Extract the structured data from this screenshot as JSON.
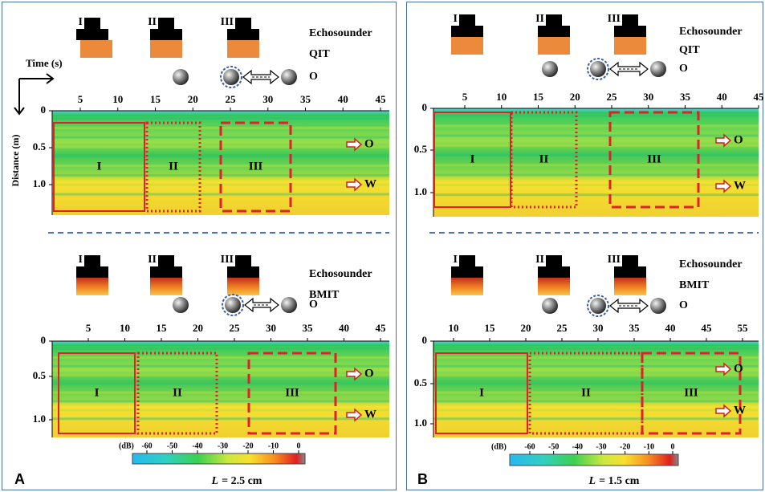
{
  "panels": [
    {
      "letter": "A",
      "caption": {
        "variable": "L",
        "text": "= 2.5 cm"
      },
      "axis_titles": {
        "x": "Time (s)",
        "y": "Distance (m)"
      },
      "sections": [
        {
          "transducers": [
            "I",
            "II",
            "III"
          ],
          "labels": [
            "Echosounder",
            "QIT",
            "O"
          ],
          "xticks": [
            5,
            10,
            15,
            20,
            25,
            30,
            35,
            40,
            45
          ],
          "yticks": [
            0,
            0.5,
            "1.0"
          ],
          "regions": [
            "I",
            "II",
            "III"
          ],
          "markers": [
            "O",
            "W"
          ]
        },
        {
          "transducers": [
            "I",
            "II",
            "III"
          ],
          "labels": [
            "Echosounder",
            "BMIT",
            "O"
          ],
          "xticks": [
            5,
            10,
            15,
            20,
            25,
            30,
            35,
            40,
            45
          ],
          "yticks": [
            0,
            0.5,
            "1.0"
          ],
          "regions": [
            "I",
            "II",
            "III"
          ],
          "markers": [
            "O",
            "W"
          ]
        }
      ],
      "colorbar": {
        "unit": "(dB)",
        "ticks": [
          -60,
          -50,
          -40,
          -30,
          -20,
          -10,
          0
        ]
      }
    },
    {
      "letter": "B",
      "caption": {
        "variable": "L",
        "text": "= 1.5 cm"
      },
      "sections": [
        {
          "transducers": [
            "I",
            "II",
            "III"
          ],
          "labels": [
            "Echosounder",
            "QIT",
            "O"
          ],
          "xticks": [
            5,
            10,
            15,
            20,
            25,
            30,
            35,
            40,
            45
          ],
          "yticks": [
            0,
            0.5,
            "1.0"
          ],
          "regions": [
            "I",
            "II",
            "III"
          ],
          "markers": [
            "O",
            "W"
          ]
        },
        {
          "transducers": [
            "I",
            "II",
            "III"
          ],
          "labels": [
            "Echosounder",
            "BMIT",
            "O"
          ],
          "xticks": [
            10,
            15,
            20,
            25,
            30,
            35,
            40,
            45,
            55
          ],
          "yticks": [
            0,
            0.5,
            "1.0"
          ],
          "regions": [
            "I",
            "II",
            "III"
          ],
          "markers": [
            "O",
            "W"
          ]
        }
      ],
      "colorbar": {
        "unit": "(dB)",
        "ticks": [
          -60,
          -50,
          -40,
          -30,
          -20,
          -10,
          0
        ]
      }
    }
  ]
}
